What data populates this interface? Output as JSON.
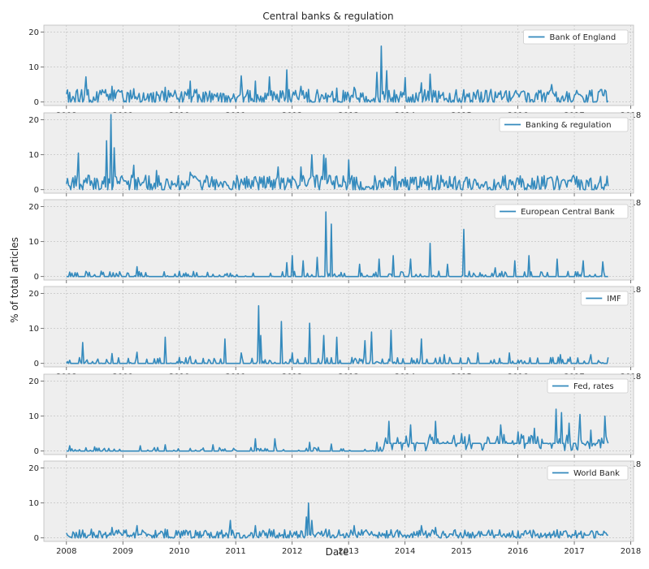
{
  "figure": {
    "title": "Central banks & regulation",
    "xlabel": "Date",
    "ylabel": "% of total articles"
  },
  "colors": {
    "line": "#348abd",
    "plot_bg": "#eeeeee",
    "grid": "#bcbcbc",
    "legend_bg": "#ffffff",
    "text": "#262626"
  },
  "chart_data": [
    {
      "type": "line",
      "name": "bank-of-england",
      "legend": "Bank of England",
      "x_ticks": [
        "2008",
        "2009",
        "2010",
        "2011",
        "2012",
        "2013",
        "2014",
        "2015",
        "2016",
        "2017",
        "2018"
      ],
      "y_ticks": [
        "0",
        "10",
        "20"
      ],
      "xlim": [
        2007.6,
        2018.05
      ],
      "ylim": [
        -1,
        22
      ],
      "grid": true,
      "legend_position": "upper right",
      "x_start": 2008.0,
      "x_end": 2017.6,
      "n_points": 500,
      "baseline": 1.2,
      "noise": 2.2,
      "sparsity": 0.0,
      "peaks": [
        [
          2008.35,
          7.2
        ],
        [
          2008.8,
          4.5
        ],
        [
          2009.2,
          3.8
        ],
        [
          2009.75,
          4.2
        ],
        [
          2010.2,
          6.0
        ],
        [
          2011.1,
          7.5
        ],
        [
          2011.35,
          6.0
        ],
        [
          2011.6,
          7.2
        ],
        [
          2011.9,
          9.2
        ],
        [
          2012.15,
          4.5
        ],
        [
          2012.8,
          4.0
        ],
        [
          2013.1,
          4.2
        ],
        [
          2013.5,
          8.5
        ],
        [
          2013.58,
          16.0
        ],
        [
          2013.68,
          9.0
        ],
        [
          2014.0,
          7.0
        ],
        [
          2014.3,
          5.5
        ],
        [
          2014.45,
          8.0
        ],
        [
          2015.5,
          2.5
        ],
        [
          2016.6,
          5.0
        ],
        [
          2017.45,
          3.0
        ]
      ]
    },
    {
      "type": "line",
      "name": "banking-regulation",
      "legend": "Banking & regulation",
      "x_ticks": [
        "2008",
        "2009",
        "2010",
        "2011",
        "2012",
        "2013",
        "2014",
        "2015",
        "2016",
        "2017",
        "2018"
      ],
      "y_ticks": [
        "0",
        "10",
        "20"
      ],
      "xlim": [
        2007.6,
        2018.05
      ],
      "ylim": [
        -1,
        22
      ],
      "grid": true,
      "legend_position": "upper right",
      "x_start": 2008.0,
      "x_end": 2017.6,
      "n_points": 500,
      "baseline": 1.5,
      "noise": 2.4,
      "sparsity": 0.0,
      "peaks": [
        [
          2008.22,
          10.5
        ],
        [
          2008.72,
          14.0
        ],
        [
          2008.78,
          21.5
        ],
        [
          2008.85,
          12.0
        ],
        [
          2009.2,
          7.0
        ],
        [
          2009.6,
          5.5
        ],
        [
          2010.2,
          5.0
        ],
        [
          2011.1,
          3.0
        ],
        [
          2011.75,
          6.5
        ],
        [
          2012.15,
          6.5
        ],
        [
          2012.35,
          10.0
        ],
        [
          2012.55,
          10.0
        ],
        [
          2012.6,
          9.0
        ],
        [
          2013.0,
          8.5
        ],
        [
          2013.82,
          6.5
        ],
        [
          2014.2,
          3.5
        ],
        [
          2016.3,
          2.5
        ],
        [
          2016.9,
          2.5
        ]
      ]
    },
    {
      "type": "line",
      "name": "european-central-bank",
      "legend": "European Central Bank",
      "x_ticks": [
        "2008",
        "2009",
        "2010",
        "2011",
        "2012",
        "2013",
        "2014",
        "2015",
        "2016",
        "2017",
        "2018"
      ],
      "y_ticks": [
        "0",
        "10",
        "20"
      ],
      "xlim": [
        2007.6,
        2018.05
      ],
      "ylim": [
        -1,
        22
      ],
      "grid": true,
      "legend_position": "upper right",
      "x_start": 2008.0,
      "x_end": 2017.6,
      "n_points": 500,
      "baseline": 0.0,
      "noise": 1.4,
      "sparsity": 0.62,
      "peaks": [
        [
          2008.1,
          1.0
        ],
        [
          2008.4,
          1.2
        ],
        [
          2008.65,
          1.2
        ],
        [
          2009.25,
          2.8
        ],
        [
          2010.0,
          1.5
        ],
        [
          2010.5,
          1.2
        ],
        [
          2011.3,
          1.0
        ],
        [
          2011.9,
          4.0
        ],
        [
          2012.0,
          6.0
        ],
        [
          2012.2,
          4.5
        ],
        [
          2012.45,
          5.5
        ],
        [
          2012.6,
          18.5
        ],
        [
          2012.7,
          15.0
        ],
        [
          2013.2,
          3.5
        ],
        [
          2013.55,
          5.0
        ],
        [
          2013.8,
          6.0
        ],
        [
          2014.1,
          5.0
        ],
        [
          2014.45,
          9.5
        ],
        [
          2014.75,
          3.5
        ],
        [
          2015.05,
          13.5
        ],
        [
          2015.6,
          2.5
        ],
        [
          2015.95,
          4.5
        ],
        [
          2016.2,
          6.0
        ],
        [
          2016.7,
          5.0
        ],
        [
          2017.15,
          4.5
        ],
        [
          2017.5,
          4.2
        ]
      ]
    },
    {
      "type": "line",
      "name": "imf",
      "legend": "IMF",
      "x_ticks": [
        "2008",
        "2009",
        "2010",
        "2011",
        "2012",
        "2013",
        "2014",
        "2015",
        "2016",
        "2017",
        "2018"
      ],
      "y_ticks": [
        "0",
        "10",
        "20"
      ],
      "xlim": [
        2007.6,
        2018.05
      ],
      "ylim": [
        -1,
        22
      ],
      "grid": true,
      "legend_position": "upper right",
      "x_start": 2008.0,
      "x_end": 2017.6,
      "n_points": 500,
      "baseline": 0.0,
      "noise": 1.6,
      "sparsity": 0.55,
      "peaks": [
        [
          2008.28,
          6.0
        ],
        [
          2008.8,
          2.8
        ],
        [
          2009.25,
          3.2
        ],
        [
          2009.75,
          7.5
        ],
        [
          2010.2,
          2.0
        ],
        [
          2010.8,
          7.0
        ],
        [
          2011.1,
          3.0
        ],
        [
          2011.4,
          16.5
        ],
        [
          2011.45,
          8.0
        ],
        [
          2011.8,
          12.0
        ],
        [
          2012.0,
          3.0
        ],
        [
          2012.3,
          11.5
        ],
        [
          2012.55,
          8.0
        ],
        [
          2012.8,
          7.5
        ],
        [
          2013.3,
          6.5
        ],
        [
          2013.4,
          9.0
        ],
        [
          2013.75,
          9.5
        ],
        [
          2014.3,
          7.0
        ],
        [
          2014.7,
          2.5
        ],
        [
          2015.3,
          3.0
        ],
        [
          2015.85,
          3.0
        ],
        [
          2016.75,
          2.5
        ],
        [
          2017.3,
          2.5
        ]
      ]
    },
    {
      "type": "line",
      "name": "fed-rates",
      "legend": "Fed, rates",
      "x_ticks": [
        "2008",
        "2009",
        "2010",
        "2011",
        "2012",
        "2013",
        "2014",
        "2015",
        "2016",
        "2017",
        "2018"
      ],
      "y_ticks": [
        "0",
        "10",
        "20"
      ],
      "xlim": [
        2007.6,
        2018.05
      ],
      "ylim": [
        -1,
        22
      ],
      "grid": true,
      "legend_position": "upper right",
      "x_start": 2008.0,
      "x_end": 2017.6,
      "n_points": 500,
      "baseline": 0.0,
      "noise": 1.0,
      "sparsity": 0.6,
      "peaks": [
        [
          2008.05,
          1.5
        ],
        [
          2008.5,
          1.2
        ],
        [
          2009.3,
          1.5
        ],
        [
          2009.75,
          1.8
        ],
        [
          2010.6,
          1.8
        ],
        [
          2011.35,
          3.5
        ],
        [
          2011.7,
          3.5
        ],
        [
          2012.3,
          2.5
        ],
        [
          2012.7,
          2.0
        ],
        [
          2013.5,
          2.5
        ],
        [
          2013.72,
          8.5
        ],
        [
          2014.1,
          7.5
        ],
        [
          2014.55,
          8.5
        ],
        [
          2015.0,
          5.0
        ],
        [
          2015.7,
          7.5
        ],
        [
          2016.0,
          5.5
        ],
        [
          2016.3,
          6.5
        ],
        [
          2016.68,
          12.0
        ],
        [
          2016.78,
          11.0
        ],
        [
          2016.9,
          8.0
        ],
        [
          2017.1,
          10.5
        ],
        [
          2017.3,
          6.0
        ],
        [
          2017.55,
          10.0
        ]
      ],
      "late_baseline": {
        "from": 2013.6,
        "level": 2.2,
        "noise": 2.4
      }
    },
    {
      "type": "line",
      "name": "world-bank",
      "legend": "World Bank",
      "x_ticks": [
        "2008",
        "2009",
        "2010",
        "2011",
        "2012",
        "2013",
        "2014",
        "2015",
        "2016",
        "2017",
        "2018"
      ],
      "y_ticks": [
        "0",
        "10",
        "20"
      ],
      "xlim": [
        2007.6,
        2018.05
      ],
      "ylim": [
        -1,
        22
      ],
      "grid": true,
      "legend_position": "upper right",
      "x_start": 2008.0,
      "x_end": 2017.6,
      "n_points": 500,
      "baseline": 0.8,
      "noise": 1.4,
      "sparsity": 0.2,
      "peaks": [
        [
          2008.45,
          2.5
        ],
        [
          2008.8,
          3.0
        ],
        [
          2009.25,
          3.5
        ],
        [
          2009.75,
          2.5
        ],
        [
          2010.2,
          2.0
        ],
        [
          2010.9,
          5.0
        ],
        [
          2011.35,
          3.5
        ],
        [
          2011.6,
          2.5
        ],
        [
          2012.25,
          6.0
        ],
        [
          2012.29,
          10.0
        ],
        [
          2012.35,
          5.0
        ],
        [
          2012.6,
          2.5
        ],
        [
          2013.1,
          3.5
        ],
        [
          2014.3,
          3.5
        ],
        [
          2014.55,
          3.0
        ],
        [
          2016.0,
          2.0
        ],
        [
          2017.55,
          1.5
        ]
      ]
    }
  ]
}
